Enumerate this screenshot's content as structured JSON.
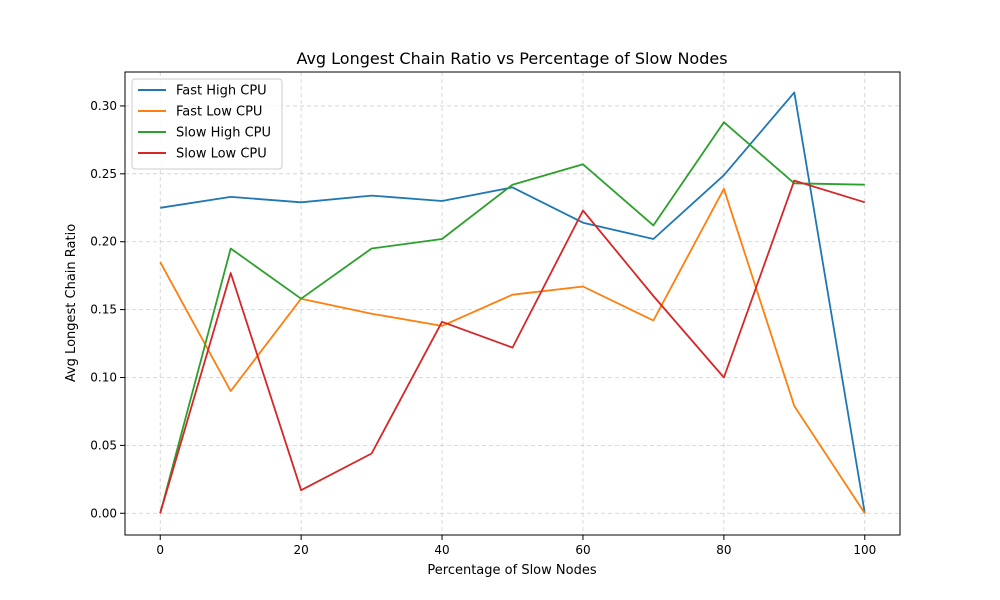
{
  "chart_data": {
    "type": "line",
    "title": "Avg Longest Chain Ratio vs Percentage of Slow Nodes",
    "xlabel": "Percentage of Slow Nodes",
    "ylabel": "Avg Longest Chain Ratio",
    "x": [
      0,
      10,
      20,
      30,
      40,
      50,
      60,
      70,
      80,
      90,
      100
    ],
    "xlim": [
      -5,
      105
    ],
    "ylim": [
      -0.016,
      0.325
    ],
    "xticks": [
      "0",
      "20",
      "40",
      "60",
      "80",
      "100"
    ],
    "yticks": [
      "0.00",
      "0.05",
      "0.10",
      "0.15",
      "0.20",
      "0.25",
      "0.30"
    ],
    "grid": true,
    "legend_position": "top-left",
    "series": [
      {
        "name": "Fast High CPU",
        "color": "#1f77b4",
        "values": [
          0.225,
          0.233,
          0.229,
          0.234,
          0.23,
          0.24,
          0.214,
          0.202,
          0.249,
          0.31,
          0.0
        ]
      },
      {
        "name": "Fast Low CPU",
        "color": "#ff7f0e",
        "values": [
          0.185,
          0.09,
          0.158,
          0.147,
          0.138,
          0.161,
          0.167,
          0.142,
          0.239,
          0.079,
          0.0
        ]
      },
      {
        "name": "Slow High CPU",
        "color": "#2ca02c",
        "values": [
          0.0,
          0.195,
          0.158,
          0.195,
          0.202,
          0.242,
          0.257,
          0.212,
          0.288,
          0.243,
          0.242
        ]
      },
      {
        "name": "Slow Low CPU",
        "color": "#d62728",
        "values": [
          0.0,
          0.177,
          0.017,
          0.044,
          0.141,
          0.122,
          0.223,
          0.16,
          0.1,
          0.245,
          0.229
        ]
      }
    ]
  }
}
